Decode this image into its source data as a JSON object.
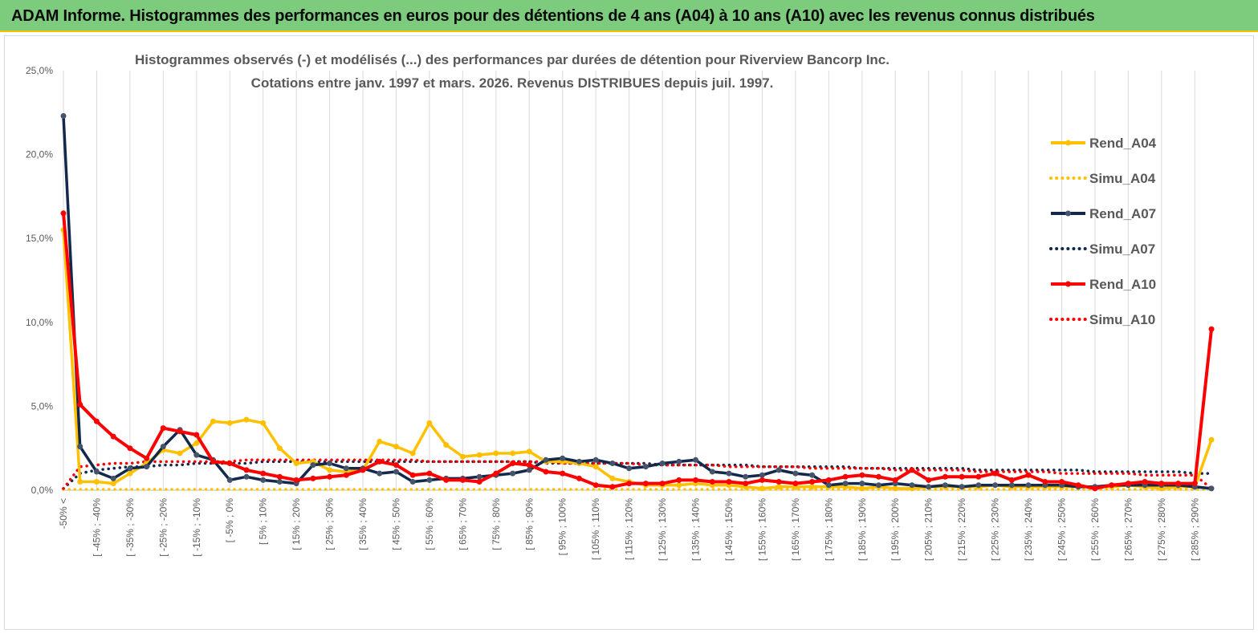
{
  "header": {
    "title": "ADAM Informe. Histogrammes des performances en euros pour des détentions de 4 ans (A04) à 10 ans (A10) avec les revenus connus distribués"
  },
  "colors": {
    "header_bg": "#7dcb7d",
    "header_border": "#f2c200",
    "A04": "#ffc000",
    "A07": "#12284c",
    "A10": "#ff0000",
    "grid": "#d9d9d9"
  },
  "chart_data": {
    "type": "line",
    "title": "Histogrammes observés (-) et modélisés (...) des performances par durées de détention pour Riverview  Bancorp Inc.",
    "subtitle": "Cotations entre janv. 1997 et mars. 2026. Revenus DISTRIBUES depuis juil. 1997.",
    "ylim": [
      0,
      25
    ],
    "y_ticks": [
      "0,0%",
      "5,0%",
      "10,0%",
      "15,0%",
      "20,0%",
      "25,0%"
    ],
    "y_tick_values": [
      0,
      5,
      10,
      15,
      20,
      25
    ],
    "legend_position": "right",
    "grid": "vertical",
    "x_labels": [
      "-50% <",
      "[ -45% ; -40%",
      "[ -35% ; -30%",
      "[ -25% ; -20%",
      "[ -15% ; -10%",
      "[ -5% ; 0%",
      "[ 5% ; 10%",
      "[ 15% ; 20%",
      "[ 25% ; 30%",
      "[ 35% ; 40%",
      "[ 45% ; 50%",
      "[ 55% ; 60%",
      "[ 65% ; 70%",
      "[ 75% ; 80%",
      "[ 85% ; 90%",
      "[ 95% ; 100%",
      "[ 105% ; 110%",
      "[ 115% ; 120%",
      "[ 125% ; 130%",
      "[ 135% ; 140%",
      "[ 145% ; 150%",
      "[ 155% ; 160%",
      "[ 165% ; 170%",
      "[ 175% ; 180%",
      "[ 185% ; 190%",
      "[ 195% ; 200%",
      "[ 205% ; 210%",
      "[ 215% ; 220%",
      "[ 225% ; 230%",
      "[ 235% ; 240%",
      "[ 245% ; 250%",
      "[ 255% ; 260%",
      "[ 265% ; 270%",
      "[ 275% ; 280%",
      "[ 285% ; 290%"
    ],
    "series": [
      {
        "name": "Rend_A04",
        "style": "solid",
        "color": "#ffc000",
        "values": [
          15.5,
          0.5,
          0.5,
          0.4,
          1.0,
          1.6,
          2.4,
          2.2,
          2.8,
          4.1,
          4.0,
          4.2,
          4.0,
          2.5,
          1.6,
          1.7,
          1.2,
          1.1,
          1.2,
          2.9,
          2.6,
          2.2,
          4.0,
          2.7,
          2.0,
          2.1,
          2.2,
          2.2,
          2.3,
          1.7,
          1.7,
          1.6,
          1.4,
          0.7,
          0.5,
          0.3,
          0.3,
          0.3,
          0.4,
          0.3,
          0.3,
          0.2,
          0.1,
          0.2,
          0.2,
          0.2,
          0.2,
          0.2,
          0.1,
          0.2,
          0.1,
          0.1,
          0.2,
          0.2,
          0.2,
          0.2,
          0.3,
          0.2,
          0.2,
          0.2,
          0.2,
          0.2,
          0.2,
          0.2,
          0.3,
          0.2,
          0.1,
          0.2,
          0.2,
          3.0
        ]
      },
      {
        "name": "Simu_A04",
        "style": "dotted",
        "color": "#ffc000",
        "values": [
          0.05,
          0.05,
          0.05,
          0.05,
          0.05,
          0.05,
          0.05,
          0.05,
          0.05,
          0.05,
          0.05,
          0.05,
          0.05,
          0.05,
          0.05,
          0.05,
          0.05,
          0.05,
          0.05,
          0.05,
          0.05,
          0.05,
          0.05,
          0.05,
          0.05,
          0.05,
          0.05,
          0.05,
          0.05,
          0.05,
          0.05,
          0.05,
          0.05,
          0.05,
          0.05,
          0.05,
          0.05,
          0.05,
          0.05,
          0.05,
          0.05,
          0.05,
          0.05,
          0.05,
          0.05,
          0.05,
          0.05,
          0.05,
          0.05,
          0.05,
          0.05,
          0.05,
          0.05,
          0.05,
          0.05,
          0.05,
          0.05,
          0.05,
          0.05,
          0.05,
          0.05,
          0.05,
          0.05,
          0.05,
          0.05,
          0.05,
          0.05,
          0.05,
          0.05,
          0.05
        ]
      },
      {
        "name": "Rend_A07",
        "style": "solid",
        "color": "#12284c",
        "values": [
          22.3,
          2.6,
          1.1,
          0.7,
          1.3,
          1.4,
          2.6,
          3.6,
          2.1,
          1.8,
          0.6,
          0.8,
          0.6,
          0.5,
          0.4,
          1.5,
          1.6,
          1.3,
          1.3,
          1.0,
          1.1,
          0.5,
          0.6,
          0.7,
          0.7,
          0.8,
          0.9,
          1.0,
          1.2,
          1.8,
          1.9,
          1.7,
          1.8,
          1.6,
          1.3,
          1.4,
          1.6,
          1.7,
          1.8,
          1.1,
          1.0,
          0.8,
          0.9,
          1.2,
          1.0,
          0.9,
          0.3,
          0.4,
          0.4,
          0.3,
          0.4,
          0.3,
          0.2,
          0.3,
          0.2,
          0.3,
          0.3,
          0.3,
          0.3,
          0.3,
          0.3,
          0.2,
          0.2,
          0.3,
          0.3,
          0.3,
          0.3,
          0.3,
          0.2,
          0.1
        ]
      },
      {
        "name": "Simu_A07",
        "style": "dotted",
        "color": "#12284c",
        "values": [
          0.1,
          1.0,
          1.2,
          1.3,
          1.4,
          1.4,
          1.5,
          1.5,
          1.6,
          1.6,
          1.6,
          1.6,
          1.7,
          1.7,
          1.7,
          1.7,
          1.7,
          1.7,
          1.7,
          1.7,
          1.7,
          1.7,
          1.7,
          1.7,
          1.7,
          1.7,
          1.7,
          1.7,
          1.7,
          1.6,
          1.6,
          1.6,
          1.6,
          1.6,
          1.6,
          1.6,
          1.5,
          1.5,
          1.5,
          1.5,
          1.5,
          1.5,
          1.4,
          1.4,
          1.4,
          1.4,
          1.4,
          1.4,
          1.3,
          1.3,
          1.3,
          1.3,
          1.3,
          1.3,
          1.3,
          1.2,
          1.2,
          1.2,
          1.2,
          1.2,
          1.2,
          1.2,
          1.1,
          1.1,
          1.1,
          1.1,
          1.1,
          1.1,
          1.0,
          1.0
        ]
      },
      {
        "name": "Rend_A10",
        "style": "solid",
        "color": "#ff0000",
        "values": [
          16.5,
          5.1,
          4.1,
          3.2,
          2.5,
          1.9,
          3.7,
          3.5,
          3.3,
          1.7,
          1.6,
          1.2,
          1.0,
          0.8,
          0.6,
          0.7,
          0.8,
          0.9,
          1.2,
          1.7,
          1.5,
          0.9,
          1.0,
          0.6,
          0.6,
          0.5,
          1.0,
          1.6,
          1.5,
          1.1,
          1.0,
          0.7,
          0.3,
          0.2,
          0.4,
          0.4,
          0.4,
          0.6,
          0.6,
          0.5,
          0.5,
          0.4,
          0.6,
          0.5,
          0.4,
          0.5,
          0.6,
          0.8,
          0.9,
          0.8,
          0.6,
          1.2,
          0.6,
          0.8,
          0.8,
          0.8,
          1.0,
          0.6,
          0.9,
          0.5,
          0.5,
          0.3,
          0.1,
          0.3,
          0.4,
          0.5,
          0.4,
          0.4,
          0.4,
          9.6
        ]
      },
      {
        "name": "Simu_A10",
        "style": "dotted",
        "color": "#ff0000",
        "values": [
          0.1,
          1.4,
          1.5,
          1.6,
          1.6,
          1.7,
          1.7,
          1.7,
          1.7,
          1.7,
          1.7,
          1.8,
          1.8,
          1.8,
          1.8,
          1.8,
          1.8,
          1.8,
          1.8,
          1.8,
          1.8,
          1.8,
          1.7,
          1.7,
          1.7,
          1.7,
          1.7,
          1.7,
          1.7,
          1.7,
          1.6,
          1.6,
          1.6,
          1.6,
          1.6,
          1.5,
          1.5,
          1.5,
          1.5,
          1.5,
          1.4,
          1.4,
          1.4,
          1.4,
          1.4,
          1.3,
          1.3,
          1.3,
          1.3,
          1.3,
          1.2,
          1.2,
          1.2,
          1.2,
          1.2,
          1.1,
          1.1,
          1.1,
          1.1,
          1.1,
          1.0,
          1.0,
          1.0,
          1.0,
          1.0,
          0.9,
          0.9,
          0.9,
          0.9,
          0.1
        ]
      }
    ]
  }
}
